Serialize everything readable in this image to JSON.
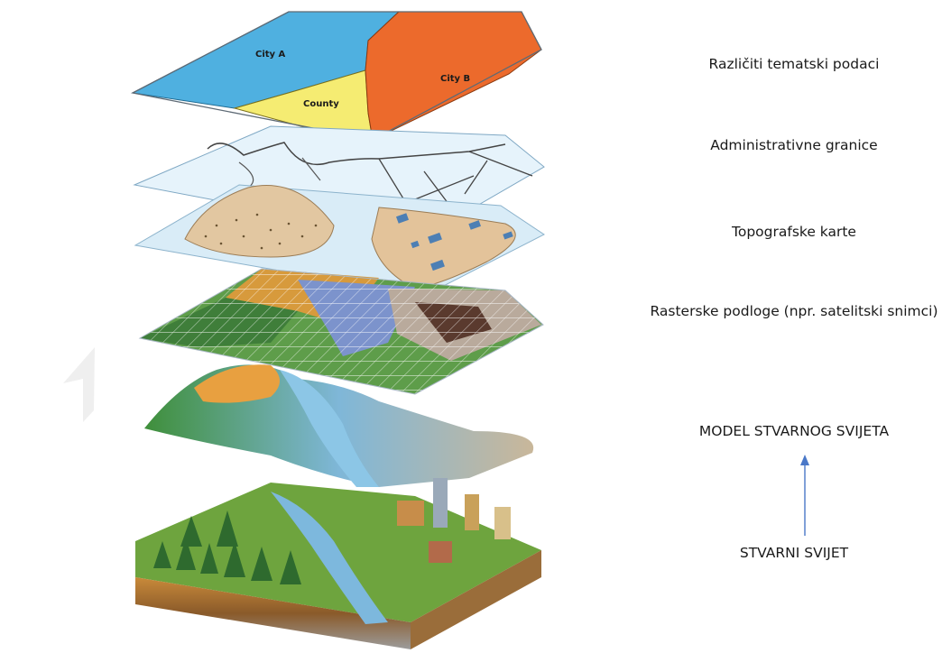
{
  "map_labels": {
    "city_a": "City A",
    "city_b": "City B",
    "county": "County"
  },
  "layers": [
    {
      "label": "Različiti tematski podaci"
    },
    {
      "label": "Administrativne granice"
    },
    {
      "label": "Topografske karte"
    },
    {
      "label": "Rasterske podloge (npr. satelitski snimci)"
    },
    {
      "label": "MODEL STVARNOG SVIJETA"
    },
    {
      "label": "STVARNI SVIJET"
    }
  ],
  "colors": {
    "city_a": "#4fb0e0",
    "city_b": "#ec6a2c",
    "county": "#f5ec72",
    "arrow": "#4a78c8"
  }
}
